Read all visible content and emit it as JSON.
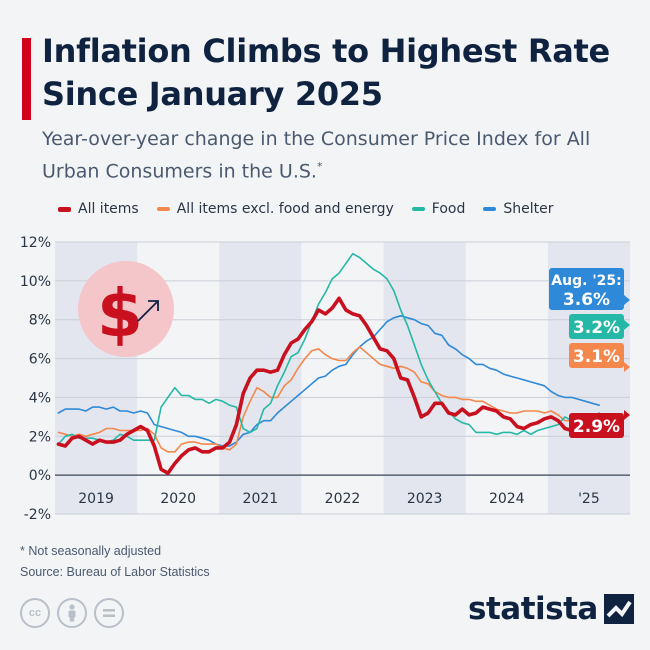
{
  "title": "Inflation Climbs to Highest Rate Since January 2025",
  "subtitle": "Year-over-year change in the Consumer Price Index for All Urban Consumers in the U.S.",
  "subtitle_mark": "*",
  "footnote": "* Not seasonally adjusted",
  "source": "Source: Bureau of Labor Statistics",
  "brand": "statista",
  "license_icons": [
    "cc-icon",
    "by-icon",
    "nd-icon"
  ],
  "colors": {
    "title_bar": "#d0021b",
    "all_items": "#c8101f",
    "core": "#f4874b",
    "food": "#25b8a7",
    "shelter": "#2e8ad8"
  },
  "chart_data": {
    "type": "line",
    "x_start": "2019-01",
    "x_end": "2025-08",
    "x_frequency": "monthly",
    "x_labels": [
      "2019",
      "2020",
      "2021",
      "2022",
      "2023",
      "2024",
      "'25"
    ],
    "y_ticks": [
      "12%",
      "10%",
      "8%",
      "6%",
      "4%",
      "2%",
      "0%",
      "-2%"
    ],
    "ylim": [
      -2,
      12
    ],
    "grid": true,
    "legend_position": "top",
    "series": [
      {
        "name": "All items",
        "color": "#c8101f",
        "width": 3.6,
        "end_label": "2.9%",
        "values": [
          1.6,
          1.5,
          1.9,
          2.0,
          1.8,
          1.6,
          1.8,
          1.7,
          1.7,
          1.8,
          2.1,
          2.3,
          2.5,
          2.3,
          1.5,
          0.3,
          0.1,
          0.6,
          1.0,
          1.3,
          1.4,
          1.2,
          1.2,
          1.4,
          1.4,
          1.7,
          2.6,
          4.2,
          5.0,
          5.4,
          5.4,
          5.3,
          5.4,
          6.2,
          6.8,
          7.0,
          7.5,
          7.9,
          8.5,
          8.3,
          8.6,
          9.1,
          8.5,
          8.3,
          8.2,
          7.7,
          7.1,
          6.5,
          6.4,
          6.0,
          5.0,
          4.9,
          4.0,
          3.0,
          3.2,
          3.7,
          3.7,
          3.2,
          3.1,
          3.4,
          3.1,
          3.2,
          3.5,
          3.4,
          3.3,
          3.0,
          2.9,
          2.5,
          2.4,
          2.6,
          2.7,
          2.9,
          3.0,
          2.8,
          2.4,
          2.3,
          2.4,
          2.7,
          2.7,
          2.9
        ]
      },
      {
        "name": "All items excl. food and energy",
        "color": "#f4874b",
        "width": 1.6,
        "end_label": "3.1%",
        "values": [
          2.2,
          2.1,
          2.0,
          2.1,
          2.0,
          2.1,
          2.2,
          2.4,
          2.4,
          2.3,
          2.3,
          2.3,
          2.3,
          2.4,
          2.1,
          1.4,
          1.2,
          1.2,
          1.6,
          1.7,
          1.7,
          1.6,
          1.6,
          1.6,
          1.4,
          1.3,
          1.6,
          3.0,
          3.8,
          4.5,
          4.3,
          4.0,
          4.0,
          4.6,
          4.9,
          5.5,
          6.0,
          6.4,
          6.5,
          6.2,
          6.0,
          5.9,
          5.9,
          6.3,
          6.6,
          6.3,
          6.0,
          5.7,
          5.6,
          5.5,
          5.6,
          5.5,
          5.3,
          4.8,
          4.7,
          4.3,
          4.1,
          4.0,
          4.0,
          3.9,
          3.9,
          3.8,
          3.8,
          3.6,
          3.4,
          3.3,
          3.2,
          3.2,
          3.3,
          3.3,
          3.3,
          3.2,
          3.3,
          3.1,
          2.8,
          2.8,
          2.8,
          2.9,
          3.1,
          3.1
        ]
      },
      {
        "name": "Food",
        "color": "#25b8a7",
        "width": 1.6,
        "end_label": "3.2%",
        "values": [
          1.6,
          2.0,
          2.1,
          1.9,
          1.9,
          1.9,
          1.8,
          1.7,
          1.8,
          2.1,
          2.0,
          1.8,
          1.8,
          1.8,
          1.8,
          3.5,
          4.0,
          4.5,
          4.1,
          4.1,
          3.9,
          3.9,
          3.7,
          3.9,
          3.8,
          3.6,
          3.5,
          2.4,
          2.2,
          2.4,
          3.4,
          3.7,
          4.6,
          5.3,
          6.1,
          6.3,
          7.0,
          7.9,
          8.8,
          9.4,
          10.1,
          10.4,
          10.9,
          11.4,
          11.2,
          10.9,
          10.6,
          10.4,
          10.1,
          9.5,
          8.5,
          7.7,
          6.7,
          5.7,
          4.9,
          4.3,
          3.7,
          3.3,
          2.9,
          2.7,
          2.6,
          2.2,
          2.2,
          2.2,
          2.1,
          2.2,
          2.2,
          2.1,
          2.3,
          2.1,
          2.3,
          2.4,
          2.5,
          2.6,
          3.0,
          2.8,
          2.9,
          3.0,
          2.9,
          3.2
        ]
      },
      {
        "name": "Shelter",
        "color": "#2e8ad8",
        "width": 1.6,
        "end_label": "3.6%",
        "values": [
          3.2,
          3.4,
          3.4,
          3.4,
          3.3,
          3.5,
          3.5,
          3.4,
          3.5,
          3.3,
          3.3,
          3.2,
          3.3,
          3.2,
          2.6,
          2.5,
          2.4,
          2.3,
          2.2,
          2.0,
          2.0,
          1.9,
          1.8,
          1.6,
          1.5,
          1.5,
          1.7,
          2.1,
          2.2,
          2.6,
          2.8,
          2.8,
          3.2,
          3.5,
          3.8,
          4.1,
          4.4,
          4.7,
          5.0,
          5.1,
          5.4,
          5.6,
          5.7,
          6.2,
          6.6,
          6.9,
          7.1,
          7.5,
          7.9,
          8.1,
          8.2,
          8.1,
          8.0,
          7.8,
          7.7,
          7.3,
          7.2,
          6.7,
          6.5,
          6.2,
          6.0,
          5.7,
          5.7,
          5.5,
          5.4,
          5.2,
          5.1,
          5.0,
          4.9,
          4.8,
          4.7,
          4.6,
          4.3,
          4.1,
          4.0,
          4.0,
          3.9,
          3.8,
          3.7,
          3.6
        ]
      }
    ],
    "callout_heading": "Aug. '25:"
  }
}
